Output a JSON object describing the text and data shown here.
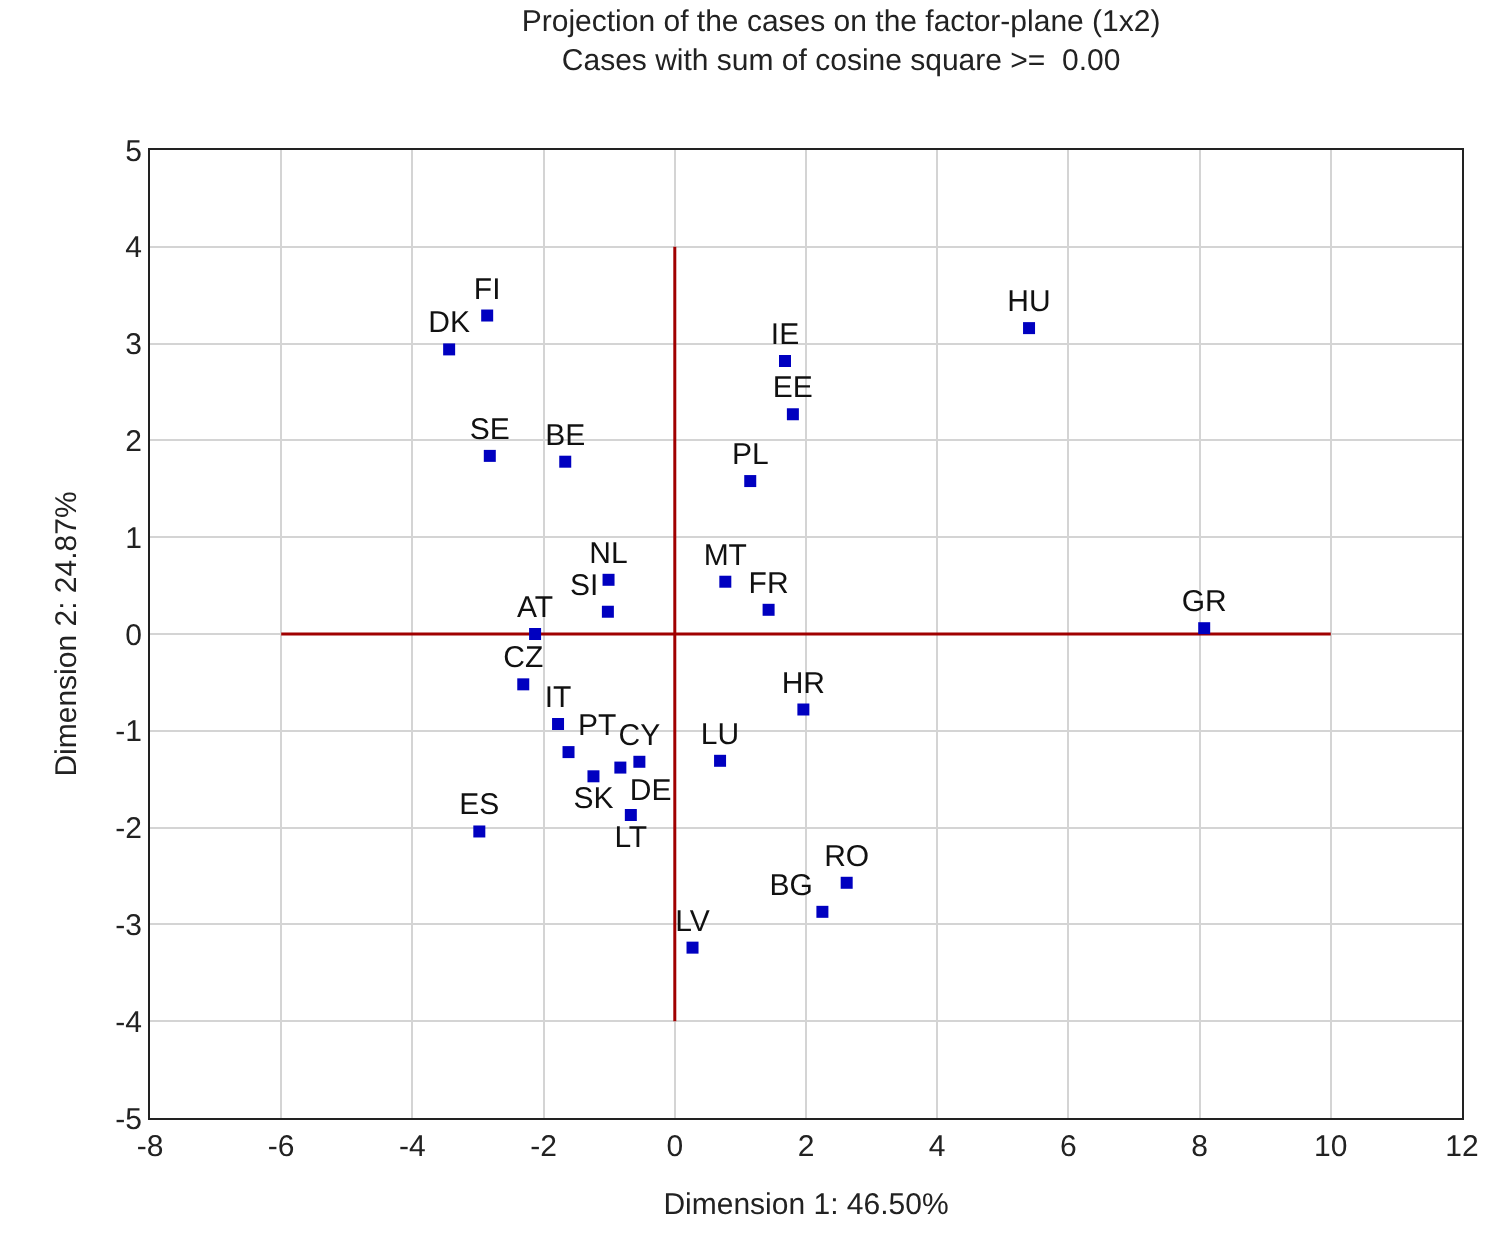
{
  "chart_data": {
    "type": "scatter",
    "title": "Projection of the cases on the factor-plane (1x2)",
    "subtitle": "Cases with sum of cosine square >=  0.00",
    "xlabel": "Dimension 1: 46.50%",
    "ylabel": "Dimension 2: 24.87%",
    "xlim": [
      -8,
      12
    ],
    "xticks": [
      -8,
      -6,
      -4,
      -2,
      0,
      2,
      4,
      6,
      8,
      10,
      12
    ],
    "ylim": [
      -5,
      5
    ],
    "yticks": [
      -5,
      -4,
      -3,
      -2,
      -1,
      0,
      1,
      2,
      3,
      4,
      5
    ],
    "grid": true,
    "marker": "square",
    "series": [
      {
        "type": "line",
        "color": "#a00000",
        "x": [
          -6,
          10
        ],
        "values": [
          0,
          0
        ],
        "marker": "none"
      },
      {
        "type": "line",
        "color": "#a00000",
        "x": [
          0,
          0
        ],
        "values": [
          -4,
          4
        ],
        "marker": "none"
      },
      {
        "color": "#0000c0",
        "x": [
          -2.86,
          -3.44,
          -2.82,
          -1.67,
          -1.01,
          -1.02,
          -2.13,
          1.68,
          1.8,
          1.15,
          0.77,
          1.43,
          5.4,
          8.07,
          -2.31,
          -1.78,
          -1.62,
          -1.24,
          -0.83,
          -0.54,
          -0.67,
          -2.98,
          0.27,
          0.69,
          1.96,
          2.62,
          2.25
        ],
        "values": [
          3.29,
          2.94,
          1.84,
          1.78,
          0.56,
          0.23,
          0.0,
          2.82,
          2.27,
          1.58,
          0.54,
          0.25,
          3.16,
          0.06,
          -0.52,
          -0.93,
          -1.22,
          -1.47,
          -1.38,
          -1.32,
          -1.87,
          -2.04,
          -3.24,
          -1.31,
          -0.78,
          -2.57,
          -2.87
        ],
        "value_labels": [
          "FI",
          "DK",
          "SE",
          "BE",
          "NL",
          "SI",
          "AT",
          "IE",
          "EE",
          "PL",
          "MT",
          "FR",
          "HU",
          "GR",
          "CZ",
          "IT",
          "PT",
          "SK",
          "DE",
          "CY",
          "LT",
          "ES",
          "LV",
          "LU",
          "HR",
          "RO",
          "BG"
        ]
      }
    ]
  }
}
